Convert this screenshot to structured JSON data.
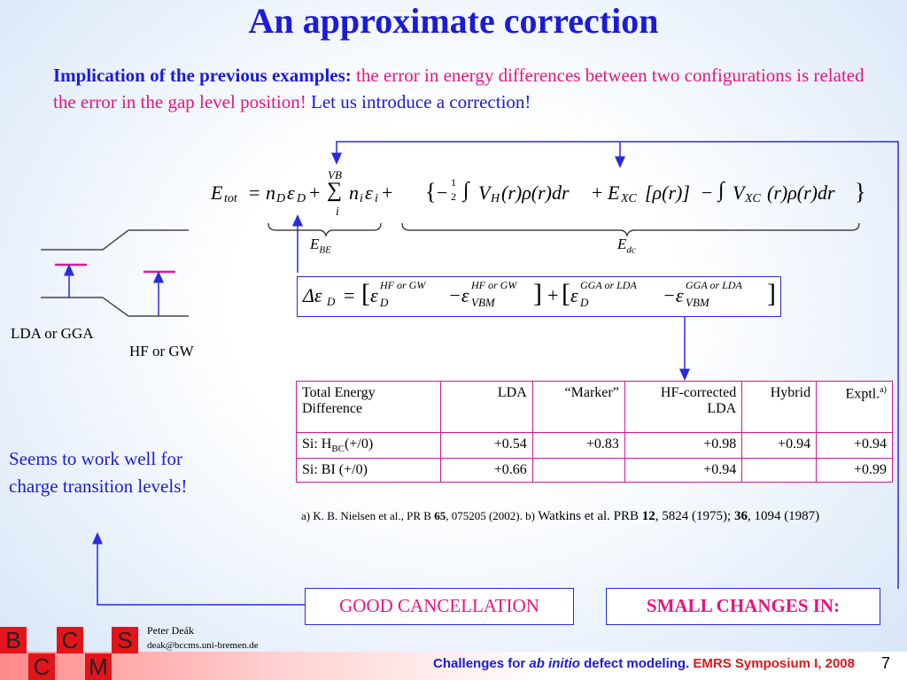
{
  "title": "An approximate correction",
  "intro": {
    "lead": "Implication of the previous examples",
    "colon": ":",
    "magenta": " the error in energy differences between two configurations is related the error in the gap level position!",
    "blue": " Let us introduce a correction!"
  },
  "equation": {
    "E": "E",
    "tot": "tot",
    "eq": "=",
    "nD": "n",
    "D": "D",
    "epsD": "ε",
    "D2": "D",
    "plus1": "+",
    "sum": "∑",
    "VB": "VB",
    "i": "i",
    "ni": "n",
    "i1": "i",
    "epsi": "ε",
    "i2": "i",
    "plus2": "+",
    "lbrace": "{",
    "minus": "−",
    "half_n": "1",
    "half_d": "2",
    "int1": "∫",
    "V": "V",
    "H": "H",
    "rho_r_dr": "(r)ρ(r)dr",
    "plus3": "+",
    "Exc": "E",
    "XC": "XC",
    "rho_arg": "[ρ(r)]",
    "minus2": "−",
    "int2": "∫",
    "V2": "V",
    "XC2": "XC",
    "rho_r_dr2": "(r)ρ(r)dr",
    "rbrace": "}",
    "EBE": "E",
    "BE": "BE",
    "Edc": "E",
    "dc": "dc"
  },
  "delta": {
    "Delta": "Δε",
    "D": "D",
    "eq": "=",
    "eps1": "ε",
    "sup1": "HF or GW",
    "sub1": "D",
    "minus1": "−ε",
    "sup2": "HF or GW",
    "sub2": "VBM",
    "plus": "+",
    "eps3": "ε",
    "sup3": "GGA or LDA",
    "sub3": "D",
    "minus2": "−ε",
    "sup4": "GGA or LDA",
    "sub4": "VBM"
  },
  "diagram": {
    "lda_label": "LDA or GGA",
    "hf_label": "HF or GW"
  },
  "side_note": {
    "line1": "Seems to work well for",
    "line2": "charge transition levels!"
  },
  "table": {
    "headers": [
      "Total Energy Difference",
      "LDA",
      "“Marker”",
      "HF-corrected LDA",
      "Hybrid",
      "Exptl."
    ],
    "header_sup": "a)",
    "rows": [
      {
        "label_main": "Si: H",
        "label_sub": "BC",
        "label_rest": "(+/0)",
        "values": [
          "+0.54",
          "+0.83",
          "+0.98",
          "+0.94",
          "+0.94"
        ]
      },
      {
        "label_main": "Si: BI (+/0)",
        "label_sub": "",
        "label_rest": "",
        "values": [
          "+0.66",
          "",
          "+0.94",
          "",
          "+0.99"
        ]
      }
    ]
  },
  "refs": {
    "a": "a) K. B. Nielsen et al., PR B ",
    "a_vol": "65",
    "a_rest": ", 075205 (2002). b) ",
    "b": "Watkins et al. PRB ",
    "b_vol1": "12",
    "b_mid": ", 5824 (1975); ",
    "b_vol2": "36",
    "b_rest": ", 1094 (1987)"
  },
  "good_cancellation": "GOOD CANCELLATION",
  "small_changes": "SMALL CHANGES IN:",
  "author": {
    "name": "Peter Deák",
    "email": "deak@bccms.uni-bremen.de"
  },
  "logo_letters": [
    "B",
    "C",
    "S",
    "C",
    "M"
  ],
  "footer": {
    "part1": "Challenges for ",
    "italic": "ab initio",
    "part2": " defect modeling. ",
    "red": "EMRS Symposium I, 2008"
  },
  "page_number": "7",
  "colors": {
    "title": "#1b1bd8",
    "magenta": "#e6157e",
    "table_border": "#d21a8a",
    "logo_red": "#e3151a"
  }
}
